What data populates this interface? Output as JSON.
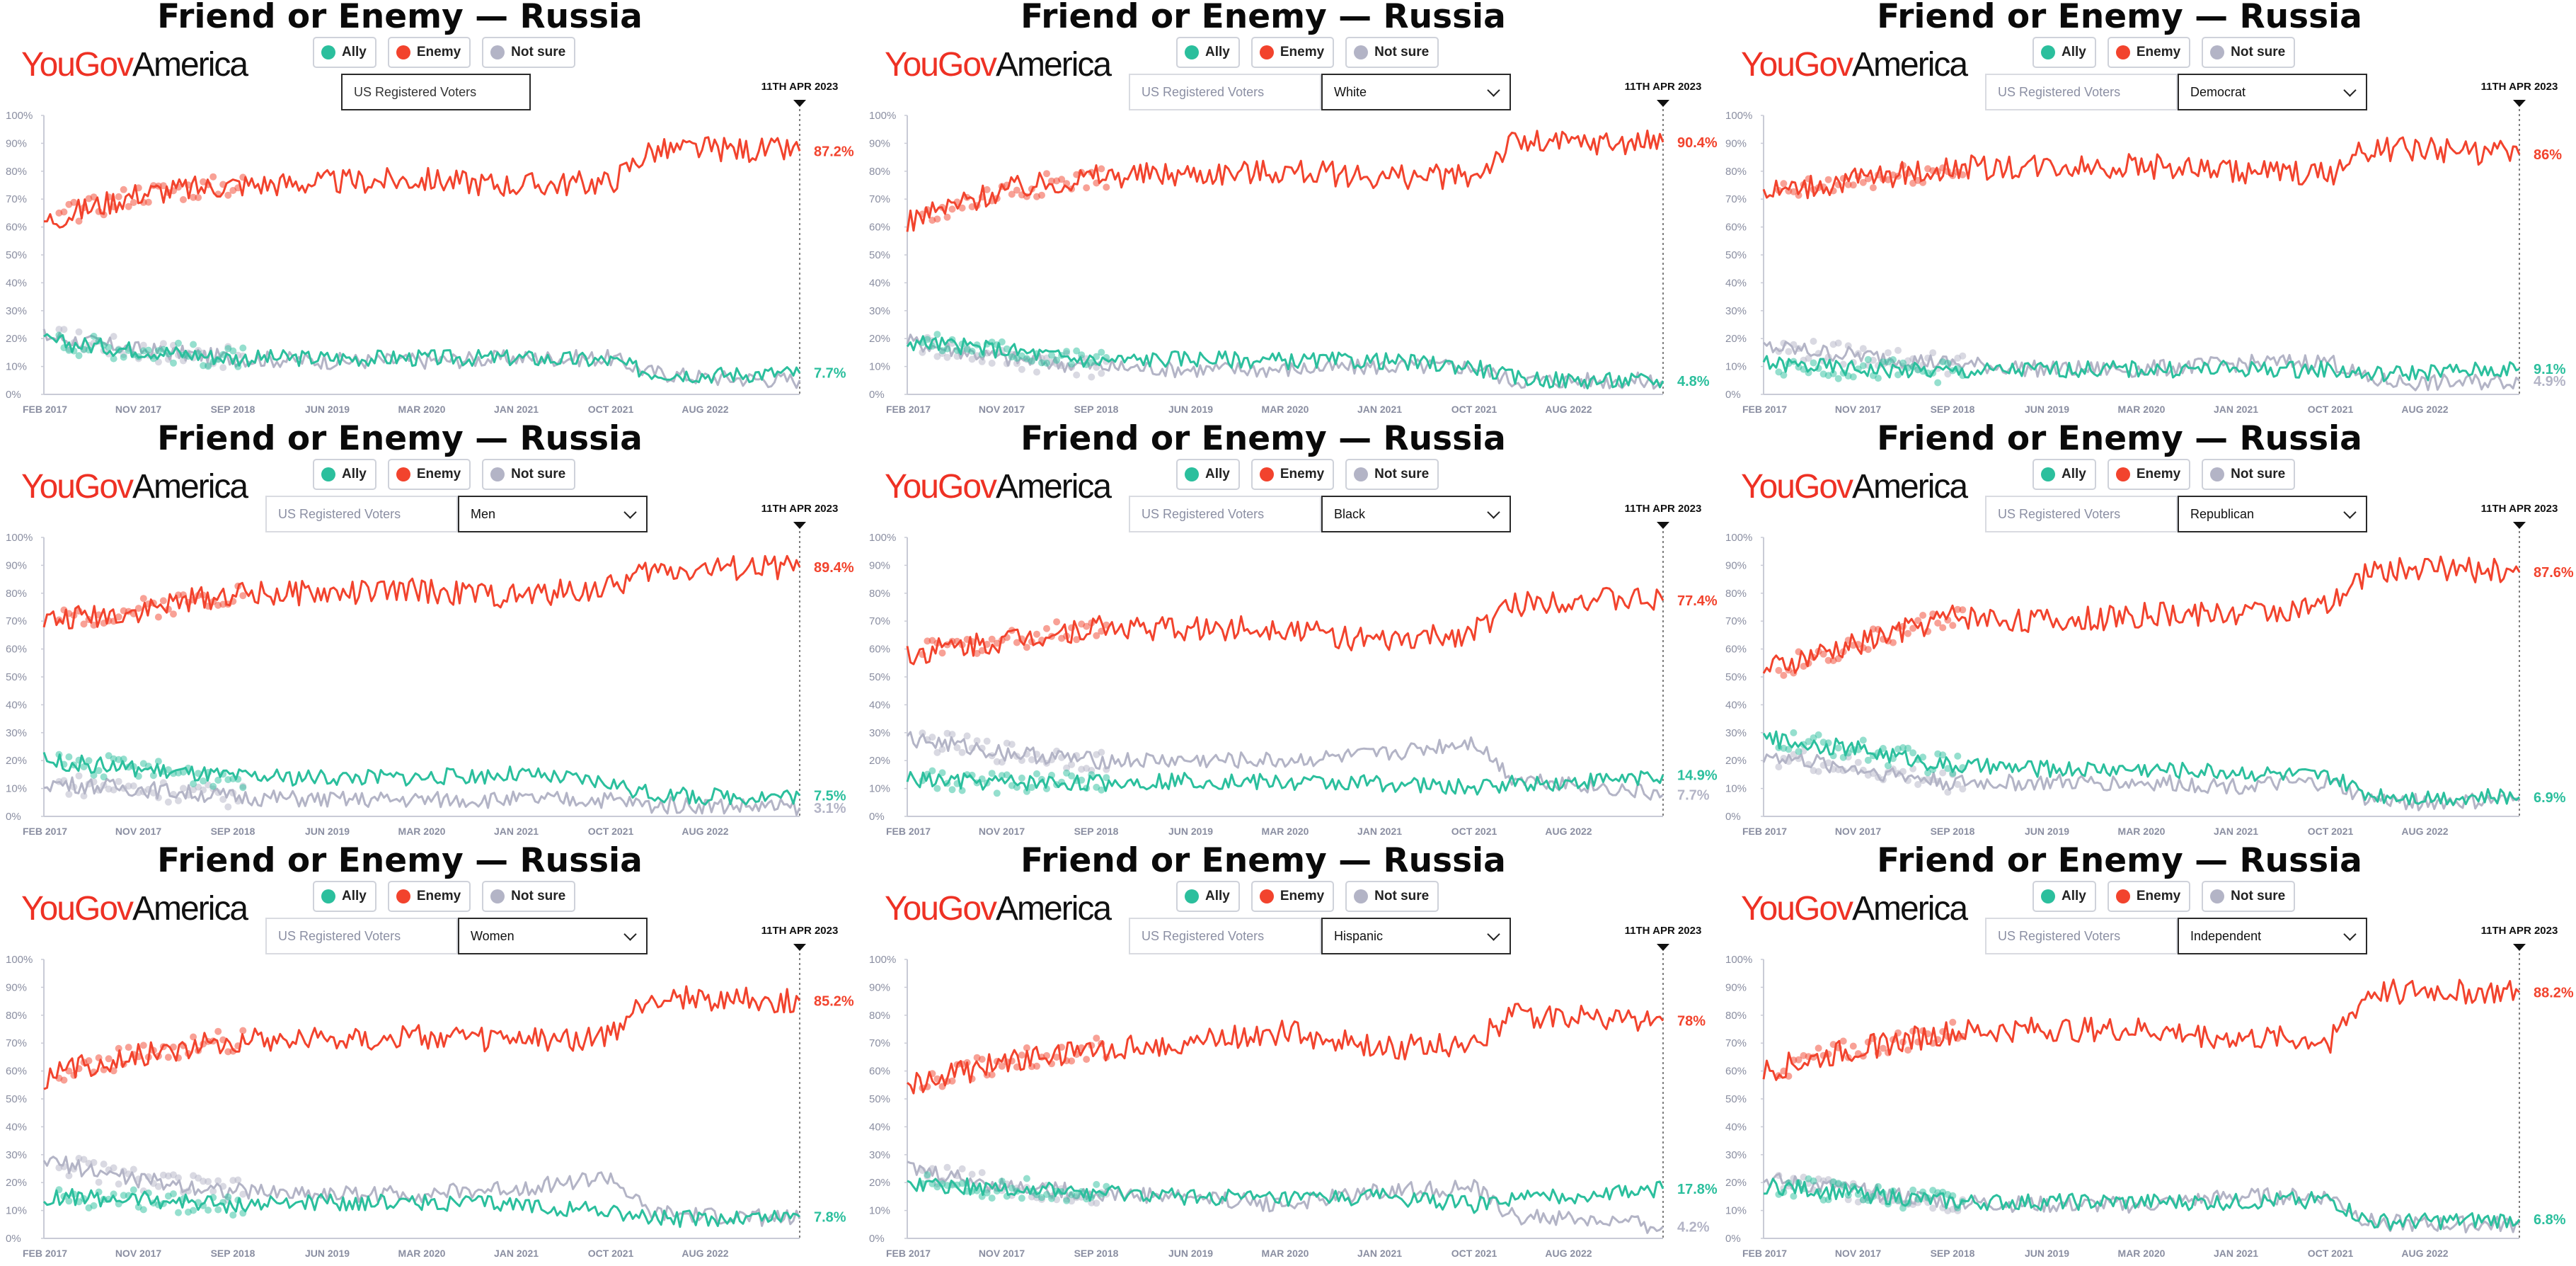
{
  "colors": {
    "ally": "#2bbf9d",
    "enemy": "#f2432d",
    "not_sure": "#b3b4c6",
    "brand": "#ee3124"
  },
  "brand": {
    "part1": "YouGov",
    "part2": "America"
  },
  "legend": [
    {
      "key": "ally",
      "label": "Ally",
      "color": "#2bbf9d"
    },
    {
      "key": "enemy",
      "label": "Enemy",
      "color": "#f2432d"
    },
    {
      "key": "not_sure",
      "label": "Not sure",
      "color": "#b3b4c6"
    }
  ],
  "panels": [
    {
      "title": "Friend or Enemy — Russia",
      "population": "US Registered Voters",
      "group": "",
      "date_marker": "11TH APR 2023",
      "end_labels": {
        "enemy": "87.2%",
        "ally": "7.7%",
        "not_sure": ""
      }
    },
    {
      "title": "Friend or Enemy — Russia",
      "population": "US Registered Voters",
      "group": "White",
      "date_marker": "11TH APR 2023",
      "end_labels": {
        "enemy": "90.4%",
        "ally": "4.8%",
        "not_sure": ""
      }
    },
    {
      "title": "Friend or Enemy — Russia",
      "population": "US Registered Voters",
      "group": "Democrat",
      "date_marker": "11TH APR 2023",
      "end_labels": {
        "enemy": "86%",
        "ally": "9.1%",
        "not_sure": "4.9%"
      }
    },
    {
      "title": "Friend or Enemy — Russia",
      "population": "US Registered Voters",
      "group": "Men",
      "date_marker": "11TH APR 2023",
      "end_labels": {
        "enemy": "89.4%",
        "ally": "7.5%",
        "not_sure": "3.1%"
      }
    },
    {
      "title": "Friend or Enemy — Russia",
      "population": "US Registered Voters",
      "group": "Black",
      "date_marker": "11TH APR 2023",
      "end_labels": {
        "enemy": "77.4%",
        "ally": "14.9%",
        "not_sure": "7.7%"
      }
    },
    {
      "title": "Friend or Enemy — Russia",
      "population": "US Registered Voters",
      "group": "Republican",
      "date_marker": "11TH APR 2023",
      "end_labels": {
        "enemy": "87.6%",
        "ally": "6.9%",
        "not_sure": ""
      }
    },
    {
      "title": "Friend or Enemy — Russia",
      "population": "US Registered Voters",
      "group": "Women",
      "date_marker": "11TH APR 2023",
      "end_labels": {
        "enemy": "85.2%",
        "ally": "7.8%",
        "not_sure": ""
      }
    },
    {
      "title": "Friend or Enemy — Russia",
      "population": "US Registered Voters",
      "group": "Hispanic",
      "date_marker": "11TH APR 2023",
      "end_labels": {
        "enemy": "78%",
        "ally": "17.8%",
        "not_sure": "4.2%"
      }
    },
    {
      "title": "Friend or Enemy — Russia",
      "population": "US Registered Voters",
      "group": "Independent",
      "date_marker": "11TH APR 2023",
      "end_labels": {
        "enemy": "88.2%",
        "ally": "6.8%",
        "not_sure": ""
      }
    }
  ],
  "chart_data": [
    {
      "type": "line",
      "title": "Friend or Enemy — Russia",
      "subset": "US Registered Voters",
      "ylim": [
        0,
        100
      ],
      "grid": false,
      "x_ticks": [
        "FEB 2017",
        "NOV 2017",
        "SEP 2018",
        "JUN 2019",
        "MAR 2020",
        "JAN 2021",
        "OCT 2021",
        "AUG 2022"
      ],
      "y_ticks": [
        "0%",
        "10%",
        "20%",
        "30%",
        "40%",
        "50%",
        "60%",
        "70%",
        "80%",
        "90%",
        "100%"
      ],
      "x": [
        "2017-02",
        "2017-11",
        "2018-09",
        "2019-06",
        "2020-03",
        "2021-01",
        "2021-10",
        "2022-03",
        "2022-08",
        "2023-04"
      ],
      "series": [
        {
          "name": "Enemy",
          "values": [
            62,
            72,
            75,
            76,
            77,
            75,
            76,
            87,
            88,
            87.2
          ]
        },
        {
          "name": "Ally",
          "values": [
            19,
            16,
            13,
            13,
            13,
            13,
            12,
            8,
            7,
            7.7
          ]
        },
        {
          "name": "Not sure",
          "values": [
            21,
            16,
            13,
            12,
            12,
            13,
            13,
            8,
            6,
            5.1
          ]
        }
      ]
    },
    {
      "type": "line",
      "title": "Friend or Enemy — Russia",
      "subset": "White",
      "ylim": [
        0,
        100
      ],
      "grid": false,
      "x_ticks": [
        "FEB 2017",
        "NOV 2017",
        "SEP 2018",
        "JUN 2019",
        "MAR 2020",
        "JAN 2021",
        "OCT 2021",
        "AUG 2022"
      ],
      "y_ticks": [
        "0%",
        "10%",
        "20%",
        "30%",
        "40%",
        "50%",
        "60%",
        "70%",
        "80%",
        "90%",
        "100%"
      ],
      "x": [
        "2017-02",
        "2017-11",
        "2018-09",
        "2019-06",
        "2020-03",
        "2021-01",
        "2021-10",
        "2022-03",
        "2022-08",
        "2023-04"
      ],
      "series": [
        {
          "name": "Enemy",
          "values": [
            62,
            73,
            78,
            79,
            80,
            78,
            78,
            90,
            90,
            90.4
          ]
        },
        {
          "name": "Ally",
          "values": [
            19,
            16,
            12,
            13,
            12,
            12,
            10,
            6,
            5,
            4.8
          ]
        },
        {
          "name": "Not sure",
          "values": [
            19,
            13,
            10,
            9,
            9,
            10,
            10,
            5,
            5,
            4.8
          ]
        }
      ]
    },
    {
      "type": "line",
      "title": "Friend or Enemy — Russia",
      "subset": "Democrat",
      "ylim": [
        0,
        100
      ],
      "grid": false,
      "x_ticks": [
        "FEB 2017",
        "NOV 2017",
        "SEP 2018",
        "JUN 2019",
        "MAR 2020",
        "JAN 2021",
        "OCT 2021",
        "AUG 2022"
      ],
      "y_ticks": [
        "0%",
        "10%",
        "20%",
        "30%",
        "40%",
        "50%",
        "60%",
        "70%",
        "80%",
        "90%",
        "100%"
      ],
      "x": [
        "2017-02",
        "2017-11",
        "2018-09",
        "2019-06",
        "2020-03",
        "2021-01",
        "2021-10",
        "2022-03",
        "2022-08",
        "2023-04"
      ],
      "series": [
        {
          "name": "Enemy",
          "values": [
            72,
            77,
            81,
            82,
            82,
            80,
            79,
            88,
            88,
            86
          ]
        },
        {
          "name": "Ally",
          "values": [
            11,
            9,
            8,
            9,
            9,
            9,
            9,
            7,
            8,
            9.1
          ]
        },
        {
          "name": "Not sure",
          "values": [
            17,
            14,
            11,
            9,
            9,
            11,
            12,
            5,
            4,
            4.9
          ]
        }
      ]
    },
    {
      "type": "line",
      "title": "Friend or Enemy — Russia",
      "subset": "Men",
      "ylim": [
        0,
        100
      ],
      "grid": false,
      "x_ticks": [
        "FEB 2017",
        "NOV 2017",
        "SEP 2018",
        "JUN 2019",
        "MAR 2020",
        "JAN 2021",
        "OCT 2021",
        "AUG 2022"
      ],
      "y_ticks": [
        "0%",
        "10%",
        "20%",
        "30%",
        "40%",
        "50%",
        "60%",
        "70%",
        "80%",
        "90%",
        "100%"
      ],
      "x": [
        "2017-02",
        "2017-11",
        "2018-09",
        "2019-06",
        "2020-03",
        "2021-01",
        "2021-10",
        "2022-03",
        "2022-08",
        "2023-04"
      ],
      "series": [
        {
          "name": "Enemy",
          "values": [
            70,
            74,
            80,
            80,
            81,
            79,
            82,
            88,
            89,
            89.4
          ]
        },
        {
          "name": "Ally",
          "values": [
            20,
            17,
            14,
            14,
            14,
            15,
            12,
            8,
            7,
            7.5
          ]
        },
        {
          "name": "Not sure",
          "values": [
            12,
            10,
            7,
            6,
            6,
            6,
            6,
            4,
            4,
            3.1
          ]
        }
      ]
    },
    {
      "type": "line",
      "title": "Friend or Enemy — Russia",
      "subset": "Black",
      "ylim": [
        0,
        100
      ],
      "grid": false,
      "x_ticks": [
        "FEB 2017",
        "NOV 2017",
        "SEP 2018",
        "JUN 2019",
        "MAR 2020",
        "JAN 2021",
        "OCT 2021",
        "AUG 2022"
      ],
      "y_ticks": [
        "0%",
        "10%",
        "20%",
        "30%",
        "40%",
        "50%",
        "60%",
        "70%",
        "80%",
        "90%",
        "100%"
      ],
      "x": [
        "2017-02",
        "2017-11",
        "2018-09",
        "2019-06",
        "2020-03",
        "2021-01",
        "2021-10",
        "2022-03",
        "2022-08",
        "2023-04"
      ],
      "series": [
        {
          "name": "Enemy",
          "values": [
            58,
            63,
            68,
            67,
            68,
            62,
            66,
            76,
            78,
            77.4
          ]
        },
        {
          "name": "Ally",
          "values": [
            13,
            12,
            12,
            13,
            12,
            12,
            10,
            12,
            12,
            14.9
          ]
        },
        {
          "name": "Not sure",
          "values": [
            28,
            23,
            20,
            20,
            20,
            22,
            27,
            14,
            12,
            7.7
          ]
        }
      ]
    },
    {
      "type": "line",
      "title": "Friend or Enemy — Russia",
      "subset": "Republican",
      "ylim": [
        0,
        100
      ],
      "grid": false,
      "x_ticks": [
        "FEB 2017",
        "NOV 2017",
        "SEP 2018",
        "JUN 2019",
        "MAR 2020",
        "JAN 2021",
        "OCT 2021",
        "AUG 2022"
      ],
      "y_ticks": [
        "0%",
        "10%",
        "20%",
        "30%",
        "40%",
        "50%",
        "60%",
        "70%",
        "80%",
        "90%",
        "100%"
      ],
      "x": [
        "2017-02",
        "2017-11",
        "2018-09",
        "2019-06",
        "2020-03",
        "2021-01",
        "2021-10",
        "2022-03",
        "2022-08",
        "2023-04"
      ],
      "series": [
        {
          "name": "Enemy",
          "values": [
            52,
            62,
            72,
            70,
            72,
            73,
            75,
            88,
            89,
            87.6
          ]
        },
        {
          "name": "Ally",
          "values": [
            28,
            24,
            18,
            17,
            17,
            16,
            14,
            8,
            7,
            6.9
          ]
        },
        {
          "name": "Not sure",
          "values": [
            22,
            17,
            12,
            12,
            12,
            11,
            12,
            6,
            5,
            5.5
          ]
        }
      ]
    },
    {
      "type": "line",
      "title": "Friend or Enemy — Russia",
      "subset": "Women",
      "ylim": [
        0,
        100
      ],
      "grid": false,
      "x_ticks": [
        "FEB 2017",
        "NOV 2017",
        "SEP 2018",
        "JUN 2019",
        "MAR 2020",
        "JAN 2021",
        "OCT 2021",
        "AUG 2022"
      ],
      "y_ticks": [
        "0%",
        "10%",
        "20%",
        "30%",
        "40%",
        "50%",
        "60%",
        "70%",
        "80%",
        "90%",
        "100%"
      ],
      "x": [
        "2017-02",
        "2017-11",
        "2018-09",
        "2019-06",
        "2020-03",
        "2021-01",
        "2021-10",
        "2022-03",
        "2022-08",
        "2023-04"
      ],
      "series": [
        {
          "name": "Enemy",
          "values": [
            58,
            66,
            71,
            72,
            72,
            71,
            72,
            86,
            86,
            85.2
          ]
        },
        {
          "name": "Ally",
          "values": [
            15,
            14,
            12,
            13,
            13,
            12,
            10,
            7,
            7,
            7.8
          ]
        },
        {
          "name": "Not sure",
          "values": [
            28,
            21,
            17,
            16,
            16,
            18,
            22,
            9,
            8,
            7
          ]
        }
      ]
    },
    {
      "type": "line",
      "title": "Friend or Enemy — Russia",
      "subset": "Hispanic",
      "ylim": [
        0,
        100
      ],
      "grid": false,
      "x_ticks": [
        "FEB 2017",
        "NOV 2017",
        "SEP 2018",
        "JUN 2019",
        "MAR 2020",
        "JAN 2021",
        "OCT 2021",
        "AUG 2022"
      ],
      "y_ticks": [
        "0%",
        "10%",
        "20%",
        "30%",
        "40%",
        "50%",
        "60%",
        "70%",
        "80%",
        "90%",
        "100%"
      ],
      "x": [
        "2017-02",
        "2017-11",
        "2018-09",
        "2019-06",
        "2020-03",
        "2021-01",
        "2021-10",
        "2022-03",
        "2022-08",
        "2023-04"
      ],
      "series": [
        {
          "name": "Enemy",
          "values": [
            55,
            63,
            68,
            70,
            74,
            68,
            70,
            80,
            80,
            78
          ]
        },
        {
          "name": "Ally",
          "values": [
            20,
            18,
            16,
            15,
            14,
            15,
            12,
            14,
            15,
            17.8
          ]
        },
        {
          "name": "Not sure",
          "values": [
            25,
            19,
            16,
            15,
            12,
            17,
            18,
            8,
            7,
            4.2
          ]
        }
      ]
    },
    {
      "type": "line",
      "title": "Friend or Enemy — Russia",
      "subset": "Independent",
      "ylim": [
        0,
        100
      ],
      "grid": false,
      "x_ticks": [
        "FEB 2017",
        "NOV 2017",
        "SEP 2018",
        "JUN 2019",
        "MAR 2020",
        "JAN 2021",
        "OCT 2021",
        "AUG 2022"
      ],
      "y_ticks": [
        "0%",
        "10%",
        "20%",
        "30%",
        "40%",
        "50%",
        "60%",
        "70%",
        "80%",
        "90%",
        "100%"
      ],
      "x": [
        "2017-02",
        "2017-11",
        "2018-09",
        "2019-06",
        "2020-03",
        "2021-01",
        "2021-10",
        "2022-03",
        "2022-08",
        "2023-04"
      ],
      "series": [
        {
          "name": "Enemy",
          "values": [
            60,
            68,
            74,
            75,
            75,
            72,
            71,
            88,
            89,
            88.2
          ]
        },
        {
          "name": "Ally",
          "values": [
            19,
            16,
            13,
            13,
            13,
            13,
            14,
            6,
            6,
            6.8
          ]
        },
        {
          "name": "Not sure",
          "values": [
            21,
            17,
            13,
            12,
            12,
            15,
            15,
            6,
            5,
            5
          ]
        }
      ]
    }
  ]
}
